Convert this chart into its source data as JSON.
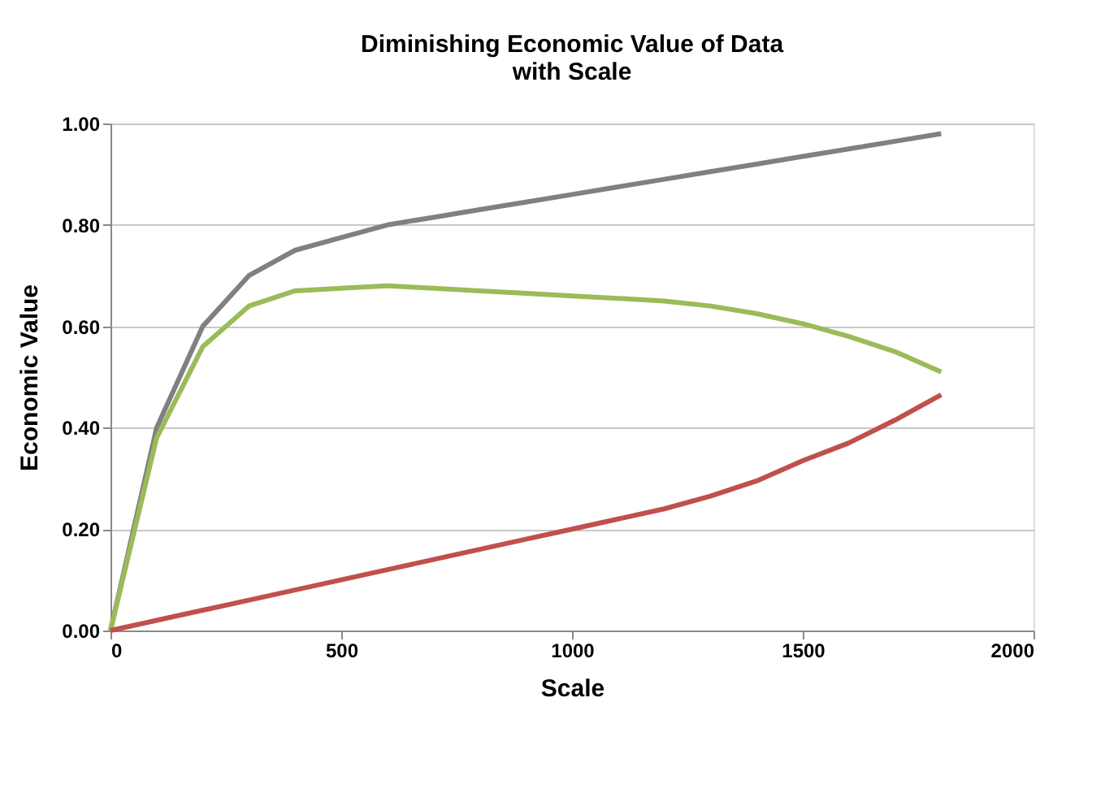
{
  "chart_data": {
    "type": "line",
    "title": [
      "Diminishing Economic Value of Data",
      "with Scale"
    ],
    "xlabel": "Scale",
    "ylabel": "Economic Value",
    "x": [
      0,
      100,
      200,
      300,
      400,
      500,
      600,
      700,
      800,
      900,
      1000,
      1100,
      1200,
      1300,
      1400,
      1500,
      1600,
      1700,
      1800
    ],
    "series": [
      {
        "color": "#808080",
        "values": [
          0,
          0.4,
          0.6,
          0.7,
          0.75,
          0.775,
          0.8,
          0.815,
          0.83,
          0.845,
          0.86,
          0.875,
          0.89,
          0.905,
          0.92,
          0.935,
          0.95,
          0.965,
          0.98
        ]
      },
      {
        "color": "#9bbb59",
        "values": [
          0,
          0.38,
          0.56,
          0.64,
          0.67,
          0.675,
          0.68,
          0.675,
          0.67,
          0.665,
          0.66,
          0.655,
          0.65,
          0.64,
          0.625,
          0.605,
          0.58,
          0.55,
          0.51
        ]
      },
      {
        "color": "#c0504d",
        "values": [
          0,
          0.02,
          0.04,
          0.06,
          0.08,
          0.1,
          0.12,
          0.14,
          0.16,
          0.18,
          0.2,
          0.22,
          0.24,
          0.265,
          0.295,
          0.335,
          0.37,
          0.415,
          0.465
        ]
      }
    ],
    "xlim": [
      0,
      2000
    ],
    "xticks": [
      0,
      500,
      1000,
      1500,
      2000
    ],
    "ylim": [
      0,
      1
    ],
    "yticks": [
      {
        "value": 0,
        "label": "0.00"
      },
      {
        "value": 0.2,
        "label": "0.20"
      },
      {
        "value": 0.4,
        "label": "0.40"
      },
      {
        "value": 0.6,
        "label": "0.60"
      },
      {
        "value": 0.8,
        "label": "0.80"
      },
      {
        "value": 1,
        "label": "1.00"
      }
    ],
    "grid": "y",
    "marker": "none",
    "line_style": "solid"
  }
}
